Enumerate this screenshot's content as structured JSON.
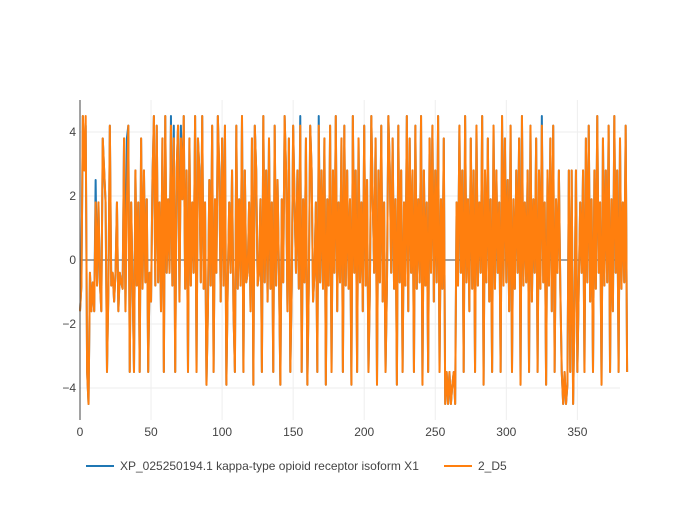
{
  "chart_data": {
    "type": "line",
    "title": "",
    "xlabel": "",
    "ylabel": "",
    "xlim": [
      0,
      380
    ],
    "ylim": [
      -5,
      5
    ],
    "x_ticks": [
      0,
      50,
      100,
      150,
      200,
      250,
      300,
      350
    ],
    "y_ticks": [
      -4,
      -2,
      0,
      2,
      4
    ],
    "x_tick_labels": [
      "0",
      "50",
      "100",
      "150",
      "200",
      "250",
      "300",
      "350"
    ],
    "y_tick_labels": [
      "−4",
      "−2",
      "0",
      "2",
      "4"
    ],
    "grid": true,
    "zero_line": true,
    "legend_position": "bottom",
    "series": [
      {
        "name": "XP_025250194.1 kappa-type opioid receptor isoform X1",
        "color": "#1f77b4",
        "x_start": 0,
        "x_step": 1,
        "values": [
          -1.6,
          -0.8,
          4.5,
          2.8,
          4.2,
          -3.5,
          -4.5,
          -0.4,
          -1.6,
          -0.7,
          -1.6,
          2.5,
          -0.8,
          1.8,
          -0.7,
          -1.6,
          3.8,
          2.8,
          1.8,
          -3.5,
          -0.9,
          4.2,
          -0.8,
          -0.4,
          -1.3,
          -0.4,
          1.8,
          -1.6,
          -0.4,
          -0.7,
          -0.9,
          3.8,
          -1.6,
          3.8,
          4.2,
          -3.5,
          1.8,
          -0.7,
          -3.5,
          2.8,
          -0.8,
          1.8,
          -3.5,
          3.8,
          -0.9,
          2.8,
          -0.7,
          1.9,
          -3.5,
          -0.4,
          -1.3,
          2.5,
          4.5,
          -0.8,
          4.2,
          -0.7,
          1.8,
          -1.6,
          3.8,
          -3.5,
          4.5,
          -0.4,
          1.9,
          -0.4,
          4.5,
          -0.8,
          4.2,
          -3.5,
          2.8,
          4.2,
          -1.3,
          4.2,
          1.9,
          4.5,
          -0.9,
          2.8,
          -3.5,
          3.8,
          -0.8,
          1.8,
          -0.4,
          4.5,
          -3.5,
          3.8,
          2.8,
          -0.7,
          4.5,
          -0.9,
          1.8,
          -3.9,
          -1.6,
          2.5,
          -0.8,
          4.2,
          -3.5,
          1.9,
          -0.4,
          4.5,
          2.8,
          -1.3,
          3.8,
          -0.8,
          4.2,
          -3.9,
          -0.7,
          1.8,
          -0.4,
          2.8,
          -1.6,
          -3.5,
          4.2,
          -0.9,
          1.9,
          -0.8,
          4.5,
          -3.5,
          2.8,
          -0.7,
          -0.4,
          1.8,
          -1.6,
          3.8,
          -3.9,
          4.2,
          2.8,
          -0.8,
          -0.4,
          1.9,
          -3.5,
          4.5,
          -0.7,
          2.8,
          -1.3,
          3.8,
          -0.9,
          1.8,
          -3.5,
          4.2,
          -0.8,
          2.5,
          -0.4,
          -3.9,
          1.9,
          -0.7,
          4.5,
          2.8,
          -1.6,
          3.8,
          -3.5,
          -0.8,
          4.2,
          1.8,
          -0.4,
          2.8,
          -0.9,
          4.5,
          -3.5,
          1.9,
          -0.7,
          3.8,
          -3.9,
          -0.8,
          4.2,
          2.8,
          -1.3,
          -0.4,
          1.8,
          -3.5,
          4.5,
          -0.7,
          2.8,
          -0.9,
          3.8,
          -3.9,
          1.9,
          -0.8,
          4.2,
          -3.5,
          2.8,
          -0.4,
          4.5,
          -1.6,
          1.8,
          -0.7,
          3.8,
          -3.5,
          4.2,
          -0.8,
          2.8,
          -0.9,
          1.9,
          -3.9,
          4.5,
          -0.4,
          2.8,
          -3.5,
          3.8,
          -0.7,
          1.8,
          -1.6,
          4.2,
          -0.8,
          2.5,
          -3.5,
          -0.9,
          4.5,
          1.9,
          -0.4,
          3.8,
          -3.9,
          2.8,
          -0.7,
          4.2,
          -1.3,
          1.8,
          -3.5,
          -0.8,
          4.5,
          2.8,
          -0.4,
          3.8,
          -0.9,
          1.9,
          -3.9,
          4.2,
          -0.7,
          2.8,
          -3.5,
          1.8,
          -0.8,
          4.5,
          -1.6,
          3.8,
          -0.4,
          2.8,
          -3.5,
          4.2,
          -0.9,
          1.9,
          -0.7,
          4.5,
          -3.9,
          2.8,
          -0.8,
          1.8,
          -3.5,
          3.8,
          -0.4,
          4.2,
          -1.3,
          2.8,
          -0.7,
          4.5,
          -3.5,
          1.9,
          -0.9,
          3.8,
          -4.5,
          -3.5,
          -4.5,
          -3.5,
          -4.5,
          -3.9,
          -3.5,
          -4.5,
          1.8,
          -0.8,
          4.2,
          -0.4,
          2.8,
          -3.5,
          4.5,
          -0.7,
          1.9,
          -1.6,
          3.8,
          -0.9,
          2.8,
          -3.5,
          4.2,
          -0.8,
          1.8,
          -0.4,
          4.5,
          -3.9,
          2.8,
          -0.7,
          3.8,
          -1.3,
          1.9,
          -3.5,
          4.2,
          -0.9,
          2.8,
          -0.4,
          1.8,
          -3.5,
          4.5,
          -0.8,
          3.8,
          -0.7,
          2.5,
          -1.6,
          4.2,
          -3.5,
          1.9,
          -0.9,
          2.8,
          -0.4,
          3.8,
          -3.9,
          4.5,
          -0.8,
          1.8,
          -0.7,
          2.8,
          -3.5,
          4.2,
          -1.3,
          1.9,
          -0.4,
          3.8,
          -3.5,
          2.8,
          -0.9,
          4.5,
          -0.7,
          1.8,
          -3.9,
          2.8,
          -0.8,
          3.8,
          -1.6,
          4.2,
          -3.5,
          1.9,
          -0.4,
          2.8,
          -0.9,
          -3.5,
          -4.5,
          -3.5,
          -4.5,
          -3.9,
          2.8,
          -3.5,
          2.8,
          -4.5,
          -1.6,
          2.8,
          -3.5,
          -0.8,
          1.8,
          -0.4,
          2.8,
          -3.5,
          3.8,
          -0.7,
          4.2,
          -1.3,
          1.9,
          -3.5,
          2.8,
          -0.9,
          4.5,
          -0.4,
          1.8,
          -3.9,
          3.8,
          -0.8,
          2.8,
          -0.7,
          4.2,
          -3.5,
          1.9,
          -1.6,
          4.5,
          -0.4,
          2.8,
          -3.5,
          3.8,
          -0.9,
          1.8,
          -0.7,
          4.2,
          -3.5
        ]
      },
      {
        "name": "2_D5",
        "color": "#ff7f0e",
        "x_start": 0,
        "x_step": 1,
        "values": [
          -1.6,
          -0.8,
          4.5,
          2.8,
          4.5,
          -3.5,
          -4.5,
          -0.4,
          -1.6,
          -0.7,
          -1.6,
          1.8,
          -0.8,
          1.8,
          -0.7,
          -1.6,
          3.8,
          2.8,
          1.8,
          -3.5,
          -0.9,
          4.2,
          -0.8,
          -0.4,
          -1.3,
          -0.4,
          1.8,
          -1.6,
          -0.4,
          -0.7,
          -0.9,
          3.8,
          -1.6,
          1.8,
          4.2,
          -3.5,
          1.8,
          -0.7,
          -3.5,
          2.8,
          -0.8,
          1.8,
          -3.5,
          3.8,
          -0.9,
          2.8,
          -0.7,
          1.9,
          -3.5,
          -0.4,
          -1.3,
          2.5,
          4.5,
          -0.8,
          4.2,
          -0.7,
          1.8,
          -1.6,
          3.8,
          -3.5,
          4.5,
          -0.4,
          1.9,
          -0.4,
          4.2,
          -0.8,
          3.8,
          -3.5,
          2.8,
          4.2,
          -1.3,
          3.8,
          1.9,
          4.5,
          -0.9,
          2.8,
          -3.5,
          3.8,
          -0.8,
          1.8,
          -0.4,
          4.5,
          -3.5,
          3.8,
          2.8,
          -0.7,
          4.5,
          -0.9,
          1.8,
          -3.9,
          -1.6,
          2.5,
          -0.8,
          4.2,
          -3.5,
          1.9,
          -0.4,
          4.5,
          2.8,
          -1.3,
          3.8,
          -0.8,
          4.2,
          -3.9,
          -0.7,
          1.8,
          -0.4,
          2.8,
          -1.6,
          -3.5,
          4.2,
          -0.9,
          1.9,
          -0.8,
          4.5,
          -3.5,
          2.8,
          -0.7,
          -0.4,
          1.8,
          -1.6,
          3.8,
          -3.9,
          4.2,
          2.8,
          -0.8,
          -0.4,
          1.9,
          -3.5,
          4.5,
          -0.7,
          2.8,
          -1.3,
          3.8,
          -0.9,
          1.8,
          -3.5,
          4.2,
          -0.8,
          2.5,
          -0.4,
          -3.9,
          1.9,
          -0.7,
          4.5,
          2.8,
          -1.6,
          3.8,
          -3.5,
          -0.8,
          4.2,
          1.8,
          -0.4,
          2.8,
          -0.9,
          4.2,
          -3.5,
          1.9,
          -0.7,
          3.8,
          -3.9,
          -0.8,
          4.2,
          2.8,
          -1.3,
          -0.4,
          1.8,
          -3.5,
          4.2,
          -0.7,
          2.8,
          -0.9,
          3.8,
          -3.9,
          1.9,
          -0.8,
          4.2,
          -3.5,
          2.8,
          -0.4,
          4.5,
          -1.6,
          1.8,
          -0.7,
          3.8,
          -3.5,
          4.2,
          -0.8,
          2.8,
          -0.9,
          1.9,
          -3.9,
          4.5,
          -0.4,
          2.8,
          -3.5,
          3.8,
          -0.7,
          1.8,
          -1.6,
          4.2,
          -0.8,
          2.5,
          -3.5,
          -0.9,
          4.5,
          1.9,
          -0.4,
          3.8,
          -3.9,
          2.8,
          -0.7,
          4.2,
          -1.3,
          1.8,
          -3.5,
          -0.8,
          4.5,
          2.8,
          -0.4,
          3.8,
          -0.9,
          1.9,
          -3.9,
          4.2,
          -0.7,
          2.8,
          -3.5,
          1.8,
          -0.8,
          4.5,
          -1.6,
          3.8,
          -0.4,
          2.8,
          -3.5,
          4.2,
          -0.9,
          1.9,
          -0.7,
          4.5,
          -3.9,
          2.8,
          -0.8,
          1.8,
          -3.5,
          3.8,
          -0.4,
          4.2,
          -1.3,
          2.8,
          -0.7,
          4.5,
          -3.5,
          1.9,
          -0.9,
          3.8,
          -4.5,
          -3.5,
          -4.5,
          -3.5,
          -4.5,
          -3.9,
          -3.5,
          -4.5,
          1.8,
          -0.8,
          4.2,
          -0.4,
          2.8,
          -3.5,
          4.5,
          -0.7,
          1.9,
          -1.6,
          3.8,
          -0.9,
          2.8,
          -3.5,
          4.2,
          -0.8,
          1.8,
          -0.4,
          4.5,
          -3.9,
          2.8,
          -0.7,
          3.8,
          -1.3,
          1.9,
          -3.5,
          4.2,
          -0.9,
          2.8,
          -0.4,
          1.8,
          -3.5,
          4.5,
          -0.8,
          3.8,
          -0.7,
          2.5,
          -1.6,
          4.2,
          -3.5,
          1.9,
          -0.9,
          2.8,
          -0.4,
          3.8,
          -3.9,
          4.5,
          -0.8,
          1.8,
          -0.7,
          2.8,
          -3.5,
          4.2,
          -1.3,
          1.9,
          -0.4,
          3.8,
          -3.5,
          2.8,
          -0.9,
          4.2,
          -0.7,
          1.8,
          -3.9,
          2.8,
          -0.8,
          3.8,
          -1.6,
          4.2,
          -3.5,
          1.9,
          -0.4,
          2.8,
          -0.9,
          -3.5,
          -4.5,
          -3.5,
          -4.5,
          -3.9,
          2.8,
          -3.5,
          2.8,
          -4.5,
          -1.6,
          2.8,
          -3.5,
          -0.8,
          1.8,
          -0.4,
          2.8,
          -3.5,
          3.8,
          -0.7,
          4.2,
          -1.3,
          1.9,
          -3.5,
          2.8,
          -0.9,
          4.5,
          -0.4,
          1.8,
          -3.9,
          3.8,
          -0.8,
          2.8,
          -0.7,
          4.2,
          -3.5,
          1.9,
          -1.6,
          4.5,
          -0.4,
          2.8,
          -3.5,
          3.8,
          -0.9,
          1.8,
          -0.7,
          4.2,
          -3.5
        ]
      }
    ]
  }
}
